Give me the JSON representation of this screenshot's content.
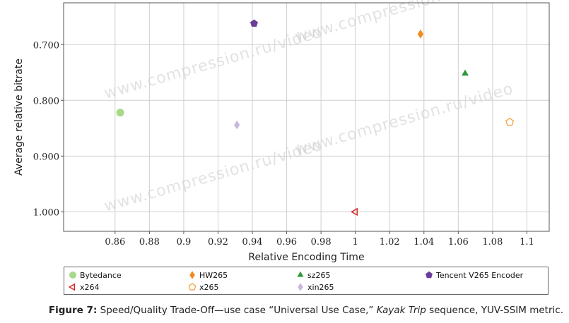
{
  "chart_data": {
    "type": "scatter",
    "xlabel": "Relative Encoding Time",
    "ylabel": "Average relative bitrate",
    "xlim": [
      0.83,
      1.113
    ],
    "ylim": [
      1.035,
      0.625
    ],
    "y_inverted": true,
    "x_ticks": [
      0.86,
      0.88,
      0.9,
      0.92,
      0.94,
      0.96,
      0.98,
      1,
      1.02,
      1.04,
      1.06,
      1.08,
      1.1
    ],
    "x_tick_labels": [
      "0.86",
      "0.88",
      "0.9",
      "0.92",
      "0.94",
      "0.96",
      "0.98",
      "1",
      "1.02",
      "1.04",
      "1.06",
      "1.08",
      "1.1"
    ],
    "y_ticks": [
      0.7,
      0.8,
      0.9,
      1.0
    ],
    "y_tick_labels": [
      "0.700",
      "0.800",
      "0.900",
      "1.000"
    ],
    "grid": true,
    "legend_placement": "bottom",
    "series": [
      {
        "name": "Bytedance",
        "marker": "circle",
        "color": "#a8d88a",
        "x": 0.863,
        "y": 0.822
      },
      {
        "name": "HW265",
        "marker": "diamond",
        "color": "#f28a1e",
        "x": 1.038,
        "y": 0.681
      },
      {
        "name": "sz265",
        "marker": "triangle",
        "color": "#2e9a3a",
        "x": 1.064,
        "y": 0.752
      },
      {
        "name": "Tencent V265 Encoder",
        "marker": "pentagon",
        "color": "#6a3d9a",
        "x": 0.941,
        "y": 0.662
      },
      {
        "name": "x264",
        "marker": "triangle-left-open",
        "color": "#d62728",
        "x": 1.0,
        "y": 1.0
      },
      {
        "name": "x265",
        "marker": "pentagon-open",
        "color": "#f4a340",
        "x": 1.09,
        "y": 0.839
      },
      {
        "name": "xin265",
        "marker": "diamond",
        "color": "#c9b8dd",
        "x": 0.931,
        "y": 0.844
      }
    ]
  },
  "watermark": "www.compression.ru/video",
  "caption": {
    "label": "Figure 7:",
    "text_before": " Speed/Quality Trade-Off—use case “Universal Use Case,” ",
    "sequence": "Kayak Trip",
    "text_after": " sequence, YUV-SSIM metric."
  }
}
